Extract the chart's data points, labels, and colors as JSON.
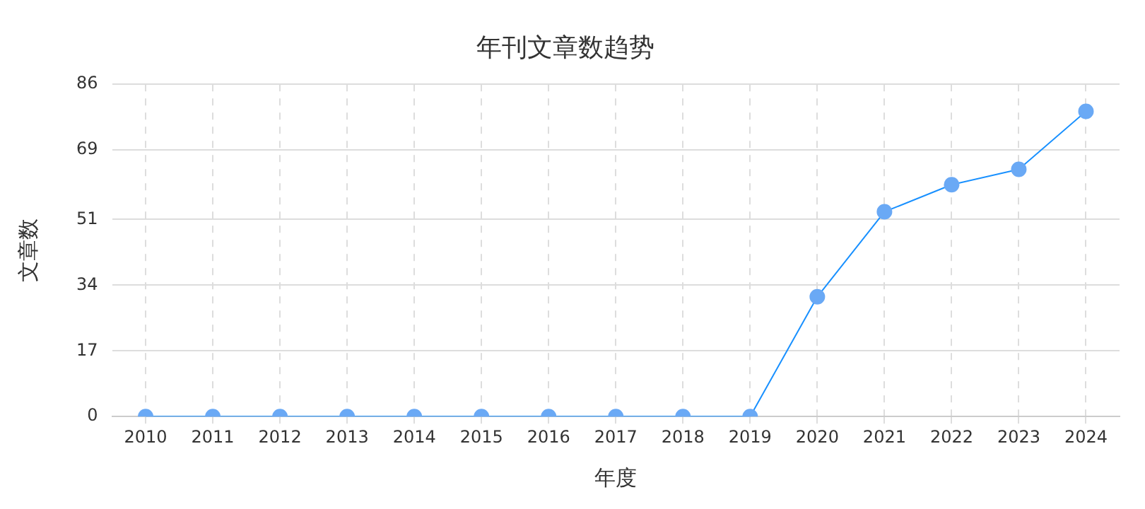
{
  "chart_data": {
    "type": "line",
    "title": "年刊文章数趋势",
    "xlabel": "年度",
    "ylabel": "文章数",
    "categories": [
      "2010",
      "2011",
      "2012",
      "2013",
      "2014",
      "2015",
      "2016",
      "2017",
      "2018",
      "2019",
      "2020",
      "2021",
      "2022",
      "2023",
      "2024"
    ],
    "series": [
      {
        "color": "#1890ff",
        "values": [
          0,
          0,
          0,
          0,
          0,
          0,
          0,
          0,
          0,
          0,
          31,
          53,
          60,
          64,
          79
        ]
      }
    ],
    "ylim": [
      0,
      86
    ],
    "yticks": [
      0,
      17,
      34,
      51,
      69,
      86
    ],
    "grid": true,
    "marker": "circle",
    "line_style": "solid",
    "legend": false
  }
}
